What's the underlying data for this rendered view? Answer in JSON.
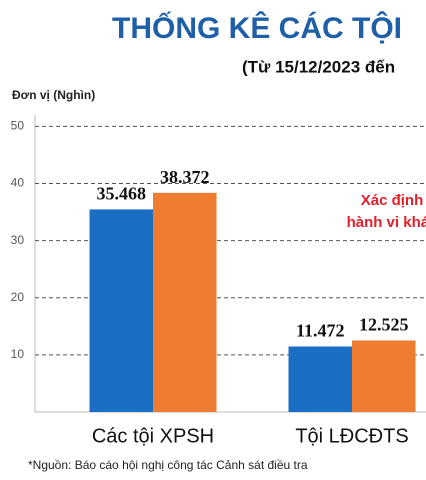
{
  "chart_data": {
    "type": "bar",
    "title": "THỐNG KÊ CÁC TỘI",
    "subtitle": "(Từ 15/12/2023 đến",
    "y_label": "Đơn vị (Nghìn)",
    "annotations": [
      "Xác định",
      "hành vi khác"
    ],
    "footnote": "*Nguồn: Báo cáo hội nghị công tác Cảnh sát điều tra",
    "categories": [
      "Các tội XPSH",
      "Tội LĐCĐTS"
    ],
    "series": [
      {
        "color": "#1a6fc4",
        "values": [
          35.468,
          11.472
        ]
      },
      {
        "color": "#ef7d31",
        "values": [
          38.372,
          12.525
        ]
      }
    ],
    "ylim": [
      0,
      52
    ],
    "yticks": [
      10,
      20,
      30,
      40,
      50
    ],
    "grid": true
  }
}
